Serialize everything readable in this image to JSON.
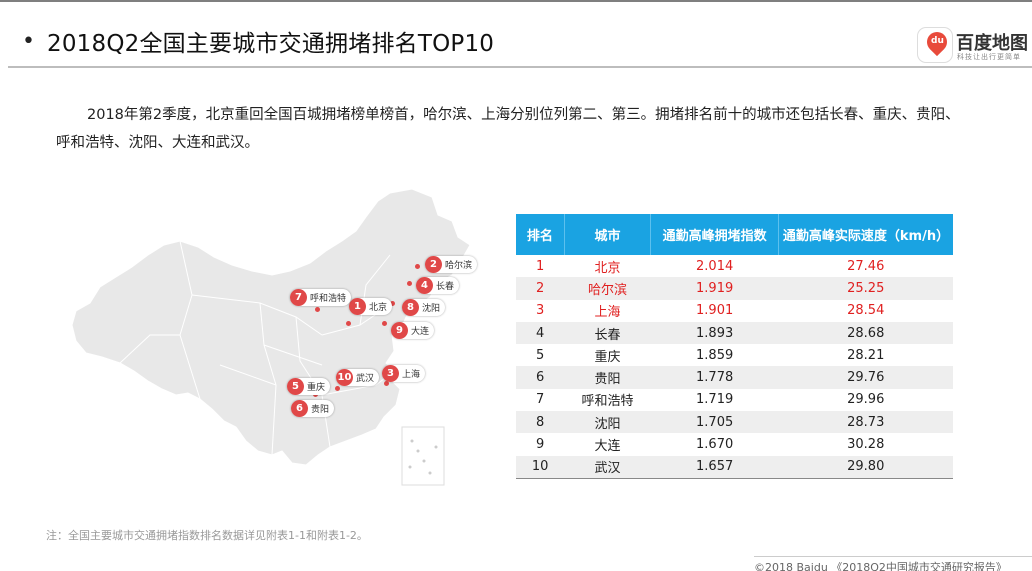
{
  "header": {
    "bullet": "•",
    "title": "2018Q2全国主要城市交通拥堵排名TOP10"
  },
  "logo": {
    "badge_text": "du",
    "name": "百度地图",
    "slogan": "科技让出行更简单"
  },
  "intro": "2018年第2季度，北京重回全国百城拥堵榜单榜首，哈尔滨、上海分别位列第二、第三。拥堵排名前十的城市还包括长春、重庆、贵阳、呼和浩特、沈阳、大连和武汉。",
  "map": {
    "markers": [
      {
        "num": "1",
        "name": "北京"
      },
      {
        "num": "2",
        "name": "哈尔滨"
      },
      {
        "num": "3",
        "name": "上海"
      },
      {
        "num": "4",
        "name": "长春"
      },
      {
        "num": "5",
        "name": "重庆"
      },
      {
        "num": "6",
        "name": "贵阳"
      },
      {
        "num": "7",
        "name": "呼和浩特"
      },
      {
        "num": "8",
        "name": "沈阳"
      },
      {
        "num": "9",
        "name": "大连"
      },
      {
        "num": "10",
        "name": "武汉"
      }
    ]
  },
  "table": {
    "headers": [
      "排名",
      "城市",
      "通勤高峰拥堵指数",
      "通勤高峰实际速度（km/h）"
    ],
    "rows": [
      [
        "1",
        "北京",
        "2.014",
        "27.46"
      ],
      [
        "2",
        "哈尔滨",
        "1.919",
        "25.25"
      ],
      [
        "3",
        "上海",
        "1.901",
        "28.54"
      ],
      [
        "4",
        "长春",
        "1.893",
        "28.68"
      ],
      [
        "5",
        "重庆",
        "1.859",
        "28.21"
      ],
      [
        "6",
        "贵阳",
        "1.778",
        "29.76"
      ],
      [
        "7",
        "呼和浩特",
        "1.719",
        "29.96"
      ],
      [
        "8",
        "沈阳",
        "1.705",
        "28.73"
      ],
      [
        "9",
        "大连",
        "1.670",
        "30.28"
      ],
      [
        "10",
        "武汉",
        "1.657",
        "29.80"
      ]
    ]
  },
  "note": "注：全国主要城市交通拥堵指数排名数据详见附表1-1和附表1-2。",
  "source": "©2018 Baidu 《2018Q2中国城市交通研究报告》",
  "colors": {
    "header_bg": "#1aa3e2",
    "highlight_text": "#e02020",
    "marker": "#e04848",
    "map_fill": "#e8e8e8"
  }
}
